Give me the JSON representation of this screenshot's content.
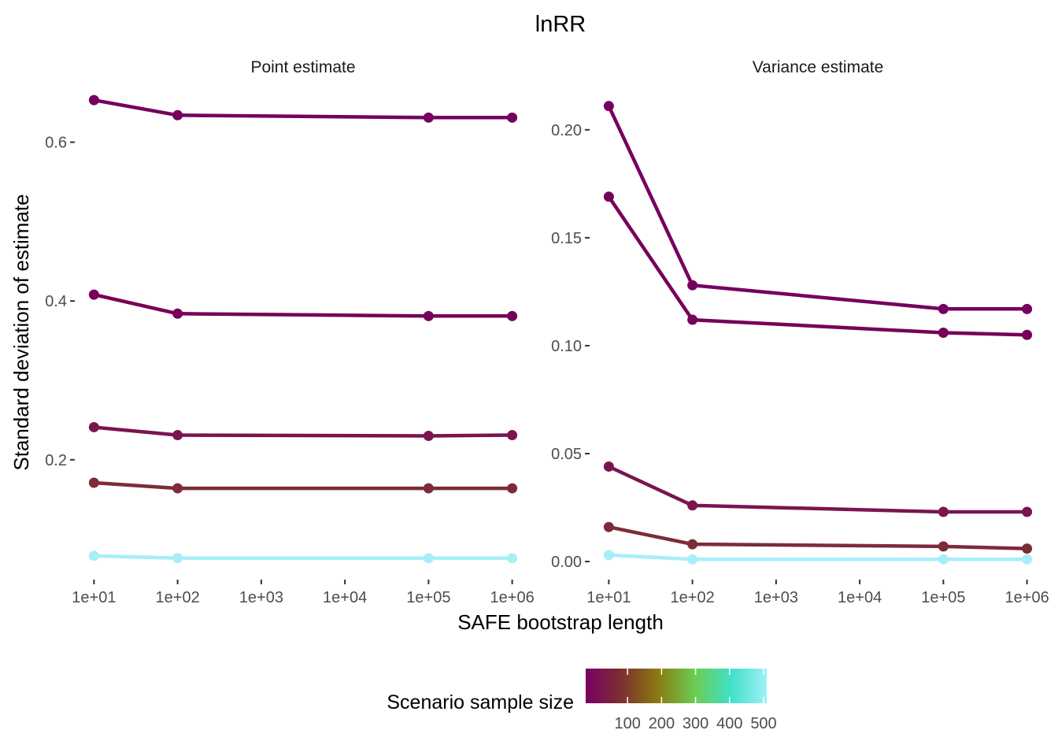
{
  "chart_data": {
    "type": "line",
    "title": "lnRR",
    "xlabel": "SAFE bootstrap length",
    "ylabel": "Standard deviation of estimate",
    "x_scale": "log10",
    "x_ticks": [
      10,
      100,
      1000,
      10000,
      100000,
      1000000
    ],
    "x_tick_labels": [
      "1e+01",
      "1e+02",
      "1e+03",
      "1e+04",
      "1e+05",
      "1e+06"
    ],
    "grid": false,
    "legend": {
      "title": "Scenario sample size",
      "placement": "bottom",
      "type": "colorbar",
      "range": [
        0,
        500
      ],
      "ticks": [
        100,
        200,
        300,
        400,
        500
      ],
      "tick_labels": [
        "100",
        "200",
        "300",
        "400",
        "500"
      ],
      "gradient_colors": [
        "#7a0063",
        "#7d3030",
        "#8a7a10",
        "#6ccc50",
        "#40e0c8",
        "#9ef0f8"
      ]
    },
    "panels": [
      {
        "strip": "Point estimate",
        "ylim": [
          0.05,
          0.67
        ],
        "y_ticks": [
          0.2,
          0.4,
          0.6
        ],
        "y_tick_labels": [
          "0.2",
          "0.4",
          "0.6"
        ],
        "series": [
          {
            "color": "#760060",
            "x": [
              10,
              100,
              100000,
              1000000
            ],
            "y": [
              0.653,
              0.634,
              0.631,
              0.631
            ]
          },
          {
            "color": "#770058",
            "x": [
              10,
              100,
              100000,
              1000000
            ],
            "y": [
              0.408,
              0.384,
              0.381,
              0.381
            ]
          },
          {
            "color": "#7a1550",
            "x": [
              10,
              100,
              100000,
              1000000
            ],
            "y": [
              0.241,
              0.231,
              0.23,
              0.231
            ]
          },
          {
            "color": "#7d2b3a",
            "x": [
              10,
              100,
              100000,
              1000000
            ],
            "y": [
              0.171,
              0.164,
              0.164,
              0.164
            ]
          },
          {
            "color": "#a8eef8",
            "x": [
              10,
              100,
              100000,
              1000000
            ],
            "y": [
              0.079,
              0.076,
              0.076,
              0.076
            ]
          }
        ]
      },
      {
        "strip": "Variance estimate",
        "ylim": [
          -0.008,
          0.22
        ],
        "y_ticks": [
          0.0,
          0.05,
          0.1,
          0.15,
          0.2
        ],
        "y_tick_labels": [
          "0.00",
          "0.05",
          "0.10",
          "0.15",
          "0.20"
        ],
        "series": [
          {
            "color": "#760060",
            "x": [
              10,
              100,
              100000,
              1000000
            ],
            "y": [
              0.211,
              0.128,
              0.117,
              0.117
            ]
          },
          {
            "color": "#770058",
            "x": [
              10,
              100,
              100000,
              1000000
            ],
            "y": [
              0.169,
              0.112,
              0.106,
              0.105
            ]
          },
          {
            "color": "#7a1550",
            "x": [
              10,
              100,
              100000,
              1000000
            ],
            "y": [
              0.044,
              0.026,
              0.023,
              0.023
            ]
          },
          {
            "color": "#7d2b3a",
            "x": [
              10,
              100,
              100000,
              1000000
            ],
            "y": [
              0.016,
              0.008,
              0.007,
              0.006
            ]
          },
          {
            "color": "#a8eef8",
            "x": [
              10,
              100,
              100000,
              1000000
            ],
            "y": [
              0.003,
              0.001,
              0.001,
              0.001
            ]
          }
        ]
      }
    ]
  }
}
